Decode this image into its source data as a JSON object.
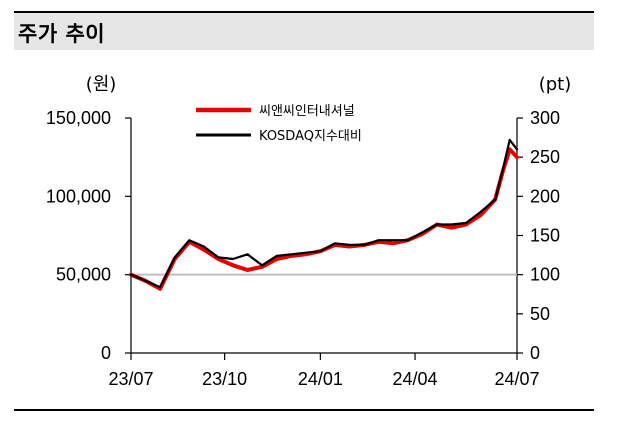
{
  "header": {
    "title": "주가 추이"
  },
  "chart_data": {
    "type": "line",
    "left_unit": "(원)",
    "right_unit": "(pt)",
    "x_tick_labels": [
      "23/07",
      "23/10",
      "24/01",
      "24/04",
      "24/07"
    ],
    "left_axis": {
      "range": [
        0,
        150000
      ],
      "ticks": [
        0,
        50000,
        100000,
        150000
      ],
      "tick_labels": [
        "0",
        "50,000",
        "100,000",
        "150,000"
      ]
    },
    "right_axis": {
      "range": [
        0,
        300
      ],
      "ticks": [
        0,
        50,
        100,
        150,
        200,
        250,
        300
      ],
      "tick_labels": [
        "0",
        "50",
        "100",
        "150",
        "200",
        "250",
        "300"
      ]
    },
    "reference_line": {
      "axis": "right",
      "value": 100,
      "color": "#bfbfbf"
    },
    "legend_position": "top-center",
    "x": [
      "2023-07-03",
      "2023-07-17",
      "2023-07-31",
      "2023-08-14",
      "2023-08-28",
      "2023-09-11",
      "2023-09-25",
      "2023-10-09",
      "2023-10-23",
      "2023-11-06",
      "2023-11-20",
      "2023-12-04",
      "2023-12-18",
      "2024-01-01",
      "2024-01-15",
      "2024-01-29",
      "2024-02-12",
      "2024-02-26",
      "2024-03-11",
      "2024-03-25",
      "2024-04-08",
      "2024-04-22",
      "2024-05-06",
      "2024-05-20",
      "2024-06-03",
      "2024-06-17",
      "2024-06-24",
      "2024-07-01",
      "2024-07-08"
    ],
    "series": [
      {
        "name": "씨앤씨인터내셔널",
        "axis": "left",
        "color": "#e60000",
        "values": [
          50000,
          46000,
          41000,
          60000,
          71000,
          66000,
          60000,
          56000,
          53000,
          55000,
          60000,
          62000,
          63000,
          65000,
          69000,
          68000,
          69000,
          71000,
          70000,
          72000,
          76000,
          82000,
          80000,
          82000,
          88000,
          98000,
          115000,
          130000,
          125000
        ]
      },
      {
        "name": "KOSDAQ지수대비",
        "axis": "right",
        "color": "#000000",
        "values": [
          100,
          92,
          84,
          122,
          144,
          136,
          122,
          120,
          126,
          112,
          124,
          126,
          128,
          130,
          140,
          138,
          138,
          144,
          144,
          144,
          154,
          164,
          164,
          166,
          180,
          196,
          232,
          272,
          260
        ]
      }
    ]
  }
}
